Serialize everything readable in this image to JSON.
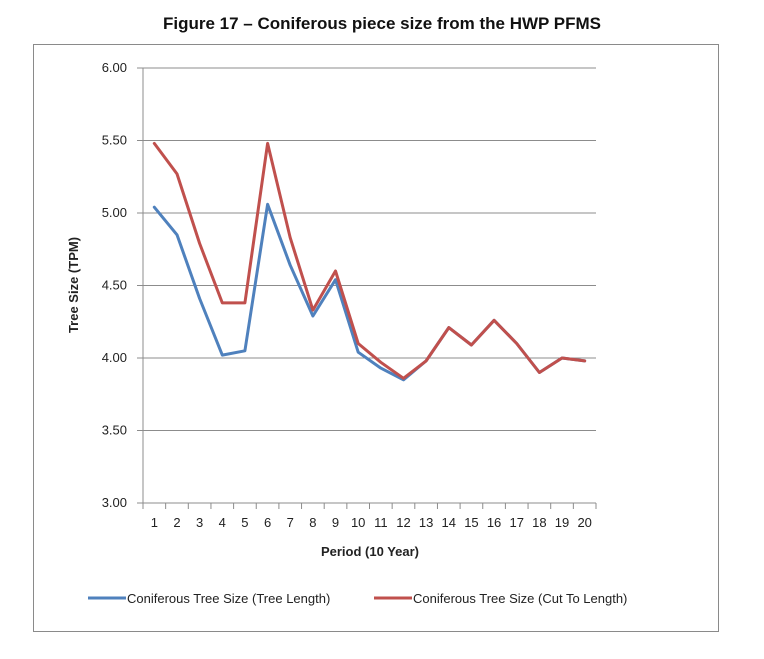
{
  "chart_data": {
    "type": "line",
    "title": "Figure 17 – Coniferous piece size from the HWP PFMS",
    "xlabel": "Period (10 Year)",
    "ylabel": "Tree Size (TPM)",
    "categories": [
      "1",
      "2",
      "3",
      "4",
      "5",
      "6",
      "7",
      "8",
      "9",
      "10",
      "11",
      "12",
      "13",
      "14",
      "15",
      "16",
      "17",
      "18",
      "19",
      "20"
    ],
    "ylim": [
      3.0,
      6.0
    ],
    "yticks": [
      "3.00",
      "3.50",
      "4.00",
      "4.50",
      "5.00",
      "5.50",
      "6.00"
    ],
    "grid": true,
    "legend_position": "bottom",
    "series": [
      {
        "name": "Coniferous Tree Size (Tree Length)",
        "color": "#4F81BD",
        "values": [
          5.04,
          4.85,
          4.41,
          4.02,
          4.05,
          5.06,
          4.64,
          4.29,
          4.54,
          4.04,
          3.93,
          3.85,
          3.98,
          4.21,
          4.09,
          4.26,
          4.1,
          3.9,
          4.0,
          3.98
        ]
      },
      {
        "name": "Coniferous Tree Size (Cut To Length)",
        "color": "#C0504D",
        "values": [
          5.48,
          5.27,
          4.79,
          4.38,
          4.38,
          5.48,
          4.83,
          4.33,
          4.6,
          4.1,
          3.97,
          3.86,
          3.98,
          4.21,
          4.09,
          4.26,
          4.1,
          3.9,
          4.0,
          3.98
        ]
      }
    ]
  }
}
